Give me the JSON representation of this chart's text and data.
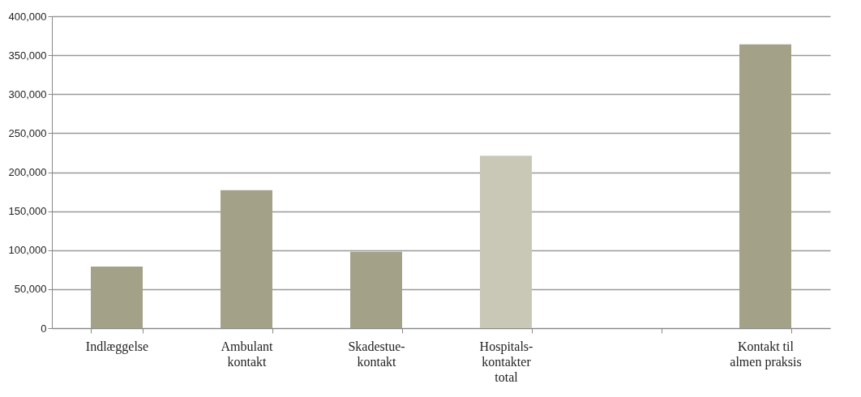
{
  "chart_data": {
    "type": "bar",
    "categories": [
      "Indlæggelse",
      "Ambulant\nkontakt",
      "Skadestue-\nkontakt",
      "Hospitals-\nkontakter\ntotal",
      null,
      "Kontakt til\nalmen praksis"
    ],
    "values": [
      79000,
      177000,
      98000,
      221000,
      null,
      364000
    ],
    "colors": [
      "#a3a188",
      "#a3a188",
      "#a3a188",
      "#c9c8b6",
      "#a3a188",
      "#a3a188"
    ],
    "ylim": [
      0,
      400000
    ],
    "yticks": [
      0,
      {
        "value": 50000,
        "label": "50,000"
      },
      {
        "value": 100000,
        "label": "100,000"
      },
      {
        "value": 150000,
        "label": "150,000"
      },
      {
        "value": 200000,
        "label": "200,000"
      },
      {
        "value": 250000,
        "label": "250,000"
      },
      {
        "value": 300000,
        "label": "300,000"
      },
      {
        "value": 350000,
        "label": "350,000"
      },
      {
        "value": 400000,
        "label": "400,000"
      }
    ],
    "grid": "y",
    "legend": false
  }
}
